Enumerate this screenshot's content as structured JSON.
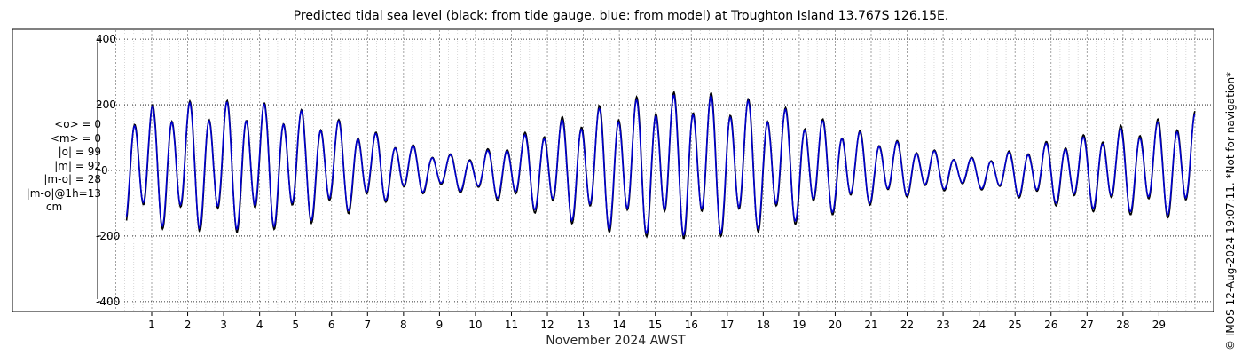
{
  "chart_data": {
    "type": "line",
    "title": "Predicted tidal sea level (black: from tide gauge, blue: from model) at Troughton Island 13.767S 126.15E.",
    "xlabel": "November 2024 AWST",
    "ylabel": "",
    "xlim": [
      "2024-10-31 06:00",
      "2024-11-30 00:00"
    ],
    "ylim": [
      -430,
      430
    ],
    "yticks": [
      -400,
      -200,
      0,
      200,
      400
    ],
    "xticks": [
      "1",
      "2",
      "3",
      "4",
      "5",
      "6",
      "7",
      "8",
      "9",
      "10",
      "11",
      "12",
      "13",
      "14",
      "15",
      "16",
      "17",
      "18",
      "19",
      "20",
      "21",
      "22",
      "23",
      "24",
      "25",
      "26",
      "27",
      "28",
      "29"
    ],
    "grid": true,
    "series": [
      {
        "color": "#000000",
        "description": "tide gauge",
        "daily_high_peaks_cm": [
          200,
          215,
          228,
          230,
          225,
          205,
          175,
          135,
          95,
          55,
          55,
          105,
          160,
          200,
          230,
          255,
          260,
          250,
          225,
          195,
          155,
          120,
          90,
          60,
          40,
          70,
          100,
          120,
          150,
          170,
          195
        ],
        "daily_low_troughs_cm": [
          -170,
          -185,
          -195,
          -200,
          -195,
          -180,
          -155,
          -120,
          -85,
          -65,
          -75,
          -110,
          -150,
          -180,
          -205,
          -215,
          -220,
          -210,
          -195,
          -170,
          -140,
          -110,
          -85,
          -65,
          -60,
          -85,
          -110,
          -130,
          -140,
          -150,
          -160
        ]
      },
      {
        "color": "#0000cc",
        "description": "model",
        "daily_high_peaks_cm": [
          190,
          210,
          222,
          225,
          220,
          200,
          170,
          130,
          92,
          52,
          50,
          98,
          150,
          190,
          220,
          245,
          250,
          240,
          220,
          188,
          150,
          115,
          86,
          57,
          38,
          65,
          94,
          112,
          140,
          160,
          185
        ],
        "daily_low_troughs_cm": [
          -160,
          -175,
          -185,
          -190,
          -185,
          -170,
          -145,
          -112,
          -80,
          -60,
          -70,
          -100,
          -140,
          -170,
          -195,
          -205,
          -208,
          -200,
          -185,
          -160,
          -132,
          -104,
          -80,
          -60,
          -56,
          -80,
          -102,
          -120,
          -130,
          -140,
          -150
        ]
      }
    ]
  },
  "stats": {
    "mean_obs": "<o> = 0",
    "mean_model": "<m> = 0",
    "abs_obs": "|o| = 99",
    "abs_model": "|m| = 92",
    "abs_diff": "|m-o| = 28",
    "abs_diff_1h": "|m-o|@1h=13",
    "unit": "cm"
  },
  "credit": "© IMOS 12-Aug-2024 19:07:11. *Not for navigation*"
}
